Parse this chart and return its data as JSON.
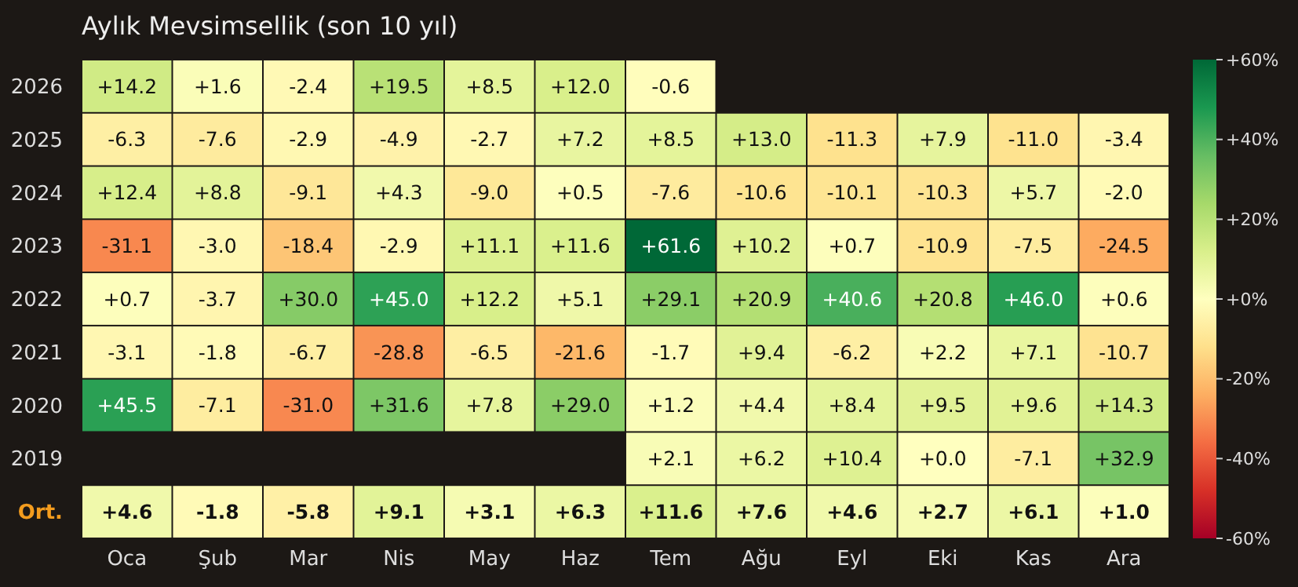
{
  "chart_data": {
    "type": "heatmap",
    "title": "Aylık Mevsimsellik (son 10 yıl)",
    "categories": [
      "Oca",
      "Şub",
      "Mar",
      "Nis",
      "May",
      "Haz",
      "Tem",
      "Ağu",
      "Eyl",
      "Eki",
      "Kas",
      "Ara"
    ],
    "y_categories": [
      "2026",
      "2025",
      "2024",
      "2023",
      "2022",
      "2021",
      "2020",
      "2019",
      "Ort."
    ],
    "cells": [
      [
        14.2,
        1.6,
        -2.4,
        19.5,
        8.5,
        12.0,
        -0.6,
        null,
        null,
        null,
        null,
        null
      ],
      [
        -6.3,
        -7.6,
        -2.9,
        -4.9,
        -2.7,
        7.2,
        8.5,
        13.0,
        -11.3,
        7.9,
        -11.0,
        -3.4
      ],
      [
        12.4,
        8.8,
        -9.1,
        4.3,
        -9.0,
        0.5,
        -7.6,
        -10.6,
        -10.1,
        -10.3,
        5.7,
        -2.0
      ],
      [
        -31.1,
        -3.0,
        -18.4,
        -2.9,
        11.1,
        11.6,
        61.6,
        10.2,
        0.7,
        -10.9,
        -7.5,
        -24.5
      ],
      [
        0.7,
        -3.7,
        30.0,
        45.0,
        12.2,
        5.1,
        29.1,
        20.9,
        40.6,
        20.8,
        46.0,
        0.6
      ],
      [
        -3.1,
        -1.8,
        -6.7,
        -28.8,
        -6.5,
        -21.6,
        -1.7,
        9.4,
        -6.2,
        2.2,
        7.1,
        -10.7
      ],
      [
        45.5,
        -7.1,
        -31.0,
        31.6,
        7.8,
        29.0,
        1.2,
        4.4,
        8.4,
        9.5,
        9.6,
        14.3
      ],
      [
        null,
        null,
        null,
        null,
        null,
        null,
        2.1,
        6.2,
        10.4,
        0.0,
        -7.1,
        32.9
      ],
      [
        4.6,
        -1.8,
        -5.8,
        9.1,
        3.1,
        6.3,
        11.6,
        7.6,
        4.6,
        2.7,
        6.1,
        1.0
      ]
    ],
    "cell_labels": [
      [
        "+14.2",
        "+1.6",
        "-2.4",
        "+19.5",
        "+8.5",
        "+12.0",
        "-0.6",
        null,
        null,
        null,
        null,
        null
      ],
      [
        "-6.3",
        "-7.6",
        "-2.9",
        "-4.9",
        "-2.7",
        "+7.2",
        "+8.5",
        "+13.0",
        "-11.3",
        "+7.9",
        "-11.0",
        "-3.4"
      ],
      [
        "+12.4",
        "+8.8",
        "-9.1",
        "+4.3",
        "-9.0",
        "+0.5",
        "-7.6",
        "-10.6",
        "-10.1",
        "-10.3",
        "+5.7",
        "-2.0"
      ],
      [
        "-31.1",
        "-3.0",
        "-18.4",
        "-2.9",
        "+11.1",
        "+11.6",
        "+61.6",
        "+10.2",
        "+0.7",
        "-10.9",
        "-7.5",
        "-24.5"
      ],
      [
        "+0.7",
        "-3.7",
        "+30.0",
        "+45.0",
        "+12.2",
        "+5.1",
        "+29.1",
        "+20.9",
        "+40.6",
        "+20.8",
        "+46.0",
        "+0.6"
      ],
      [
        "-3.1",
        "-1.8",
        "-6.7",
        "-28.8",
        "-6.5",
        "-21.6",
        "-1.7",
        "+9.4",
        "-6.2",
        "+2.2",
        "+7.1",
        "-10.7"
      ],
      [
        "+45.5",
        "-7.1",
        "-31.0",
        "+31.6",
        "+7.8",
        "+29.0",
        "+1.2",
        "+4.4",
        "+8.4",
        "+9.5",
        "+9.6",
        "+14.3"
      ],
      [
        null,
        null,
        null,
        null,
        null,
        null,
        "+2.1",
        "+6.2",
        "+10.4",
        "+0.0",
        "-7.1",
        "+32.9"
      ],
      [
        "+4.6",
        "-1.8",
        "-5.8",
        "+9.1",
        "+3.1",
        "+6.3",
        "+11.6",
        "+7.6",
        "+4.6",
        "+2.7",
        "+6.1",
        "+1.0"
      ]
    ],
    "clim": [
      -60,
      60
    ],
    "cticks": [
      {
        "value": -60,
        "label": "-60%"
      },
      {
        "value": -40,
        "label": "-40%"
      },
      {
        "value": -20,
        "label": "-20%"
      },
      {
        "value": 0,
        "label": "+0%"
      },
      {
        "value": 20,
        "label": "+20%"
      },
      {
        "value": 40,
        "label": "+40%"
      },
      {
        "value": 60,
        "label": "+60%"
      }
    ]
  }
}
